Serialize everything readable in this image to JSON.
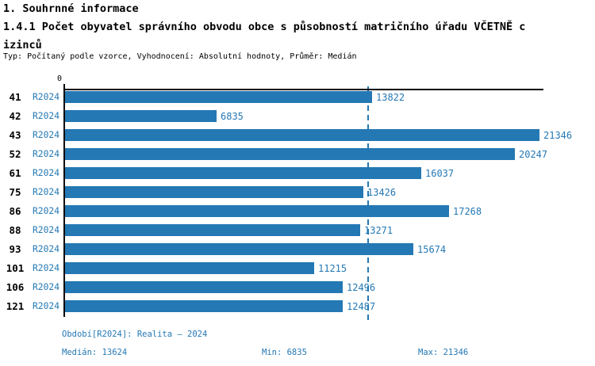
{
  "title": {
    "line1": "1. Souhrnné informace",
    "line2": "1.4.1 Počet obyvatel správního obvodu obce s působností matričního úřadu VČETNĚ c",
    "line3": "izinců",
    "subtitle": "Typ: Počítaný podle vzorce, Vyhodnocení: Absolutní hodnoty, Průměr: Medián"
  },
  "chart_data": {
    "type": "bar",
    "orientation": "horizontal",
    "title": "1.4.1 Počet obyvatel správního obvodu obce s působností matričního úřadu VČETNĚ cizinců",
    "categories": [
      "41",
      "42",
      "43",
      "52",
      "61",
      "75",
      "86",
      "88",
      "93",
      "101",
      "106",
      "121"
    ],
    "series_label": "R2024",
    "values": [
      13822,
      6835,
      21346,
      20247,
      16037,
      13426,
      17268,
      13271,
      15674,
      11215,
      12496,
      12487
    ],
    "value_axis": {
      "position": "top",
      "min": 0,
      "zero_tick_label": "0",
      "max_estimate": 21500
    },
    "median_line_value": 13624,
    "stats": {
      "median": 13624,
      "min": 6835,
      "max": 21346
    },
    "grid": false,
    "legend_position": "none"
  },
  "footer": {
    "period": "Období[R2024]: Realita – 2024",
    "median": "Medián: 13624",
    "min": "Min: 6835",
    "max": "Max: 21346"
  },
  "colors": {
    "bar": "#2478b4",
    "blue_text": "#2478b4",
    "axis": "#000000"
  }
}
